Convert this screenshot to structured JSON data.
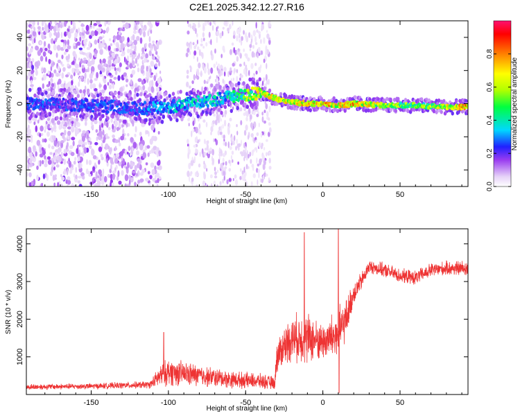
{
  "title": "C2E1.2025.342.12.27.R16",
  "chart_data": [
    {
      "type": "heatmap",
      "name": "spectrogram",
      "xlabel": "Height of straight line (km)",
      "ylabel": "Frequency (Hz)",
      "xlim": [
        -192,
        94
      ],
      "ylim": [
        -50,
        50
      ],
      "xticks": [
        -150,
        -100,
        -50,
        0,
        50
      ],
      "xtick_labels": [
        "-150",
        "-100",
        "-50",
        "0",
        "50"
      ],
      "yticks": [
        -40,
        -20,
        0,
        20,
        40
      ],
      "ytick_labels": [
        "-40",
        "-20",
        "0",
        "20",
        "40"
      ],
      "colorbar": {
        "label": "Normalized spectral amplitude",
        "range": [
          0,
          1
        ],
        "ticks": [
          0.0,
          0.2,
          0.4,
          0.6,
          0.8
        ],
        "tick_labels": [
          "0.0",
          "0.2",
          "0.4",
          "0.6",
          "0.8"
        ]
      },
      "ridge": {
        "x": [
          -190,
          -150,
          -120,
          -100,
          -80,
          -60,
          -45,
          -38,
          -30,
          -20,
          -10,
          0,
          10,
          20,
          40,
          60,
          80,
          94
        ],
        "freq": [
          0,
          -1,
          -3,
          -2,
          1,
          4,
          6,
          6,
          3,
          1,
          0,
          0,
          -1,
          0,
          -1,
          -1,
          -2,
          -2
        ],
        "peak_amplitude": [
          0.3,
          0.3,
          0.3,
          0.4,
          0.45,
          0.45,
          0.7,
          0.85,
          0.75,
          0.8,
          0.85,
          0.9,
          0.8,
          0.9,
          0.7,
          0.6,
          0.75,
          0.95
        ]
      }
    },
    {
      "type": "line",
      "name": "snr",
      "xlabel": "Height of straight line (km)",
      "ylabel": "SNR (10 * v/v)",
      "color": "#ee3333",
      "xlim": [
        -192,
        94
      ],
      "ylim": [
        0,
        4400
      ],
      "xticks": [
        -150,
        -100,
        -50,
        0,
        50
      ],
      "xtick_labels": [
        "-150",
        "-100",
        "-50",
        "0",
        "50"
      ],
      "yticks": [
        1000,
        2000,
        3000,
        4000
      ],
      "ytick_labels": [
        "1000",
        "2000",
        "3000",
        "4000"
      ],
      "envelope": {
        "x": [
          -192,
          -150,
          -112,
          -105,
          -100,
          -90,
          -80,
          -60,
          -40,
          -31,
          -30,
          -25,
          -20,
          -10,
          -5,
          0,
          5,
          10,
          15,
          20,
          25,
          30,
          40,
          50,
          60,
          70,
          80,
          94
        ],
        "mean": [
          200,
          220,
          260,
          500,
          600,
          550,
          500,
          400,
          350,
          300,
          1000,
          1300,
          1500,
          1500,
          1450,
          1400,
          1500,
          1600,
          2000,
          2700,
          3000,
          3400,
          3300,
          3150,
          3100,
          3300,
          3350,
          3350
        ],
        "spread": [
          90,
          90,
          110,
          350,
          420,
          380,
          330,
          260,
          230,
          200,
          500,
          600,
          700,
          800,
          650,
          550,
          700,
          800,
          600,
          350,
          280,
          200,
          220,
          220,
          220,
          220,
          220,
          250
        ]
      },
      "spikes": [
        {
          "x": -12,
          "y": 4300
        },
        {
          "x": 10,
          "y": 4400
        },
        {
          "x": 10.5,
          "y": 50
        },
        {
          "x": -103,
          "y": 1650
        }
      ]
    }
  ]
}
